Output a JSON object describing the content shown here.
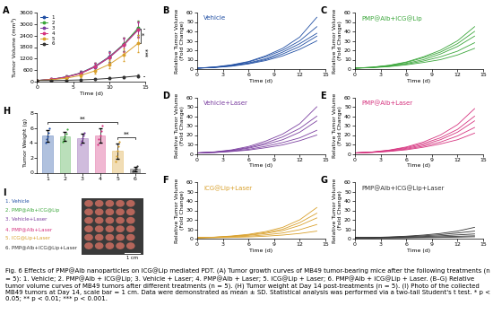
{
  "chart_data": [
    {
      "panel_label": "A",
      "type": "line",
      "x_label": "Time (d)",
      "y_label": "Tumor Volume (mm³)",
      "x": [
        0,
        2,
        4,
        6,
        8,
        10,
        12,
        14
      ],
      "xlim": [
        0,
        15
      ],
      "xticks": [
        0,
        5,
        10,
        15
      ],
      "ylim": [
        0,
        3600
      ],
      "yticks": [
        0,
        600,
        1200,
        1800,
        2400,
        3000,
        3600
      ],
      "legend": "upper left",
      "marker": "o",
      "series": [
        {
          "name": "1",
          "color": "#1f4ea3",
          "values": [
            60,
            120,
            250,
            450,
            800,
            1300,
            1950,
            2750
          ],
          "error": [
            20,
            40,
            70,
            120,
            200,
            280,
            350,
            400
          ]
        },
        {
          "name": "2",
          "color": "#3aa63a",
          "values": [
            60,
            115,
            240,
            440,
            780,
            1280,
            1950,
            2800
          ],
          "error": [
            20,
            40,
            70,
            110,
            190,
            270,
            340,
            380
          ]
        },
        {
          "name": "3",
          "color": "#7b3fa0",
          "values": [
            60,
            110,
            230,
            420,
            760,
            1250,
            1900,
            2700
          ],
          "error": [
            20,
            35,
            65,
            110,
            180,
            260,
            330,
            370
          ]
        },
        {
          "name": "4",
          "color": "#d6337f",
          "values": [
            60,
            120,
            240,
            430,
            780,
            1270,
            1920,
            2700
          ],
          "error": [
            20,
            40,
            70,
            120,
            200,
            280,
            360,
            420
          ]
        },
        {
          "name": "5",
          "color": "#d9a02b",
          "values": [
            60,
            100,
            180,
            320,
            560,
            900,
            1400,
            2000
          ],
          "error": [
            20,
            30,
            50,
            90,
            150,
            220,
            320,
            450
          ]
        },
        {
          "name": "6",
          "color": "#333333",
          "values": [
            60,
            60,
            70,
            90,
            120,
            170,
            230,
            300
          ],
          "error": [
            20,
            20,
            25,
            30,
            40,
            50,
            60,
            80
          ]
        }
      ],
      "comparisons": [
        {
          "between": [
            "1",
            "5"
          ],
          "label": "*"
        },
        {
          "between": [
            "1",
            "6"
          ],
          "label": "***"
        }
      ]
    },
    {
      "panel_label": "B",
      "type": "line",
      "title": "Vehicle",
      "x_label": "Time (d)",
      "y_label": "Relative Tumor Volume\n(Fold Change)",
      "x": [
        0,
        2,
        4,
        6,
        8,
        10,
        12,
        14
      ],
      "xlim": [
        0,
        15
      ],
      "xticks": [
        0,
        3,
        6,
        9,
        12,
        15
      ],
      "ylim": [
        0,
        60
      ],
      "yticks": [
        0,
        10,
        20,
        30,
        40,
        50,
        60
      ],
      "color": "#1f4ea3",
      "series": [
        {
          "values": [
            1,
            2.2,
            4.5,
            8,
            14,
            22,
            34,
            55
          ]
        },
        {
          "values": [
            1,
            2,
            4,
            7.5,
            13,
            20,
            30,
            45
          ]
        },
        {
          "values": [
            1,
            1.8,
            3.6,
            6.5,
            11,
            18,
            27,
            38
          ]
        },
        {
          "values": [
            1,
            1.9,
            3.5,
            6,
            10,
            16,
            24,
            35
          ]
        },
        {
          "values": [
            1,
            1.6,
            3,
            5.5,
            9,
            14,
            21,
            30
          ]
        }
      ]
    },
    {
      "panel_label": "C",
      "type": "line",
      "title": "PMP@Alb+ICG@Lip",
      "x_label": "Time (d)",
      "y_label": "Relative Tumor Volume\n(Fold Change)",
      "x": [
        0,
        2,
        4,
        6,
        8,
        10,
        12,
        14
      ],
      "xlim": [
        0,
        15
      ],
      "xticks": [
        0,
        3,
        6,
        9,
        12,
        15
      ],
      "ylim": [
        0,
        60
      ],
      "yticks": [
        0,
        10,
        20,
        30,
        40,
        50,
        60
      ],
      "color": "#3aa63a",
      "series": [
        {
          "values": [
            1,
            2,
            4,
            7.5,
            13,
            20,
            30,
            45
          ]
        },
        {
          "values": [
            1,
            1.9,
            3.8,
            7,
            12,
            18,
            27,
            40
          ]
        },
        {
          "values": [
            1,
            1.8,
            3.4,
            6,
            10,
            16,
            24,
            35
          ]
        },
        {
          "values": [
            1,
            1.6,
            3,
            5.2,
            8.5,
            13,
            19,
            28
          ]
        },
        {
          "values": [
            1,
            1.5,
            2.6,
            4.5,
            7,
            10,
            15,
            22
          ]
        }
      ]
    },
    {
      "panel_label": "D",
      "type": "line",
      "title": "Vehicle+Laser",
      "x_label": "Time (d)",
      "y_label": "Relative Tumor Volume\n(Fold Change)",
      "x": [
        0,
        2,
        4,
        6,
        8,
        10,
        12,
        14
      ],
      "xlim": [
        0,
        15
      ],
      "xticks": [
        0,
        3,
        6,
        9,
        12,
        15
      ],
      "ylim": [
        0,
        60
      ],
      "yticks": [
        0,
        10,
        20,
        30,
        40,
        50,
        60
      ],
      "color": "#7b3fa0",
      "series": [
        {
          "values": [
            1,
            2.1,
            4.2,
            7.8,
            13.5,
            21,
            32,
            50
          ]
        },
        {
          "values": [
            1,
            1.9,
            3.7,
            6.8,
            11.5,
            18,
            27,
            40
          ]
        },
        {
          "values": [
            1,
            1.7,
            3.3,
            6,
            10,
            15,
            23,
            35
          ]
        },
        {
          "values": [
            1,
            1.5,
            2.8,
            4.8,
            8,
            12,
            17,
            25
          ]
        },
        {
          "values": [
            1,
            1.4,
            2.5,
            4,
            6.5,
            9.5,
            14,
            20
          ]
        }
      ]
    },
    {
      "panel_label": "E",
      "type": "line",
      "title": "PMP@Alb+Laser",
      "x_label": "Time (d)",
      "y_label": "Relative Tumor Volume\n(Fold Change)",
      "x": [
        0,
        2,
        4,
        6,
        8,
        10,
        12,
        14
      ],
      "xlim": [
        0,
        15
      ],
      "xticks": [
        0,
        3,
        6,
        9,
        12,
        15
      ],
      "ylim": [
        0,
        60
      ],
      "yticks": [
        0,
        10,
        20,
        30,
        40,
        50,
        60
      ],
      "color": "#d6337f",
      "series": [
        {
          "values": [
            1,
            2,
            4,
            7.3,
            12.5,
            20,
            31,
            48
          ]
        },
        {
          "values": [
            1,
            1.9,
            3.7,
            6.6,
            11,
            17,
            26,
            40
          ]
        },
        {
          "values": [
            1,
            1.7,
            3.2,
            5.8,
            9.5,
            15,
            23,
            35
          ]
        },
        {
          "values": [
            1,
            1.6,
            2.9,
            5,
            8.2,
            12.5,
            19,
            28
          ]
        },
        {
          "values": [
            1,
            1.5,
            2.6,
            4.3,
            7,
            10.5,
            15,
            22
          ]
        }
      ]
    },
    {
      "panel_label": "F",
      "type": "line",
      "title": "ICG@Lip+Laser",
      "x_label": "Time (d)",
      "y_label": "Relative Tumor Volume\n(Fold Change)",
      "x": [
        0,
        2,
        4,
        6,
        8,
        10,
        12,
        14
      ],
      "xlim": [
        0,
        15
      ],
      "xticks": [
        0,
        3,
        6,
        9,
        12,
        15
      ],
      "ylim": [
        0,
        60
      ],
      "yticks": [
        0,
        10,
        20,
        30,
        40,
        50,
        60
      ],
      "color": "#d9a02b",
      "series": [
        {
          "values": [
            1,
            1.6,
            2.8,
            4.6,
            7.5,
            12,
            20,
            33
          ]
        },
        {
          "values": [
            1,
            1.5,
            2.5,
            4,
            6.5,
            10,
            17,
            27
          ]
        },
        {
          "values": [
            1,
            1.4,
            2.2,
            3.5,
            5.5,
            8.5,
            14,
            22
          ]
        },
        {
          "values": [
            1,
            1.2,
            1.8,
            2.6,
            4,
            6,
            9.5,
            15
          ]
        },
        {
          "values": [
            1,
            1,
            1.3,
            1.8,
            2.6,
            3.8,
            5.5,
            8
          ]
        }
      ]
    },
    {
      "panel_label": "G",
      "type": "line",
      "title": "PMP@Alb+ICG@Lip+Laser",
      "x_label": "Time (d)",
      "y_label": "Relative Tumor Volume\n(Fold Change)",
      "x": [
        0,
        2,
        4,
        6,
        8,
        10,
        12,
        14
      ],
      "xlim": [
        0,
        15
      ],
      "xticks": [
        0,
        3,
        6,
        9,
        12,
        15
      ],
      "ylim": [
        0,
        60
      ],
      "yticks": [
        0,
        10,
        20,
        30,
        40,
        50,
        60
      ],
      "color": "#333333",
      "series": [
        {
          "values": [
            1,
            1.2,
            1.8,
            2.6,
            3.8,
            5.5,
            8,
            12
          ]
        },
        {
          "values": [
            1,
            1.1,
            1.5,
            2.1,
            3,
            4.2,
            6,
            8
          ]
        },
        {
          "values": [
            1,
            1,
            1.2,
            1.6,
            2.2,
            3,
            4,
            5
          ]
        },
        {
          "values": [
            1,
            0.9,
            1,
            1.2,
            1.5,
            2,
            2.5,
            3
          ]
        },
        {
          "values": [
            1,
            0.8,
            0.8,
            0.9,
            1.1,
            1.3,
            1.6,
            2
          ]
        }
      ]
    },
    {
      "panel_label": "H",
      "type": "bar",
      "y_label": "Tumor Weight (g)",
      "categories": [
        "1",
        "2",
        "3",
        "4",
        "5",
        "6"
      ],
      "values": [
        4.94,
        4.92,
        4.62,
        5.04,
        2.9,
        0.5
      ],
      "error": [
        0.75,
        0.6,
        0.6,
        0.95,
        1.05,
        0.27
      ],
      "points": [
        [
          4,
          4.5,
          4.9,
          5.3,
          6
        ],
        [
          4.2,
          4.5,
          4.9,
          5.2,
          5.8
        ],
        [
          3.8,
          4.3,
          4.6,
          5,
          5.4
        ],
        [
          3.8,
          4.5,
          5,
          5.6,
          6.3
        ],
        [
          1.5,
          2.2,
          3,
          3.6,
          4.2
        ],
        [
          0.2,
          0.3,
          0.5,
          0.6,
          0.9
        ]
      ],
      "colors": [
        "#1f4ea3",
        "#3aa63a",
        "#7b3fa0",
        "#d6337f",
        "#d9a02b",
        "#333333"
      ],
      "ylim": [
        0,
        8
      ],
      "yticks": [
        0,
        2,
        4,
        6,
        8
      ],
      "comparisons": [
        {
          "between": [
            "1",
            "5"
          ],
          "label": "**"
        },
        {
          "between": [
            "5",
            "6"
          ],
          "label": "**"
        }
      ]
    }
  ],
  "photo_panel": {
    "panel_label": "I",
    "items": [
      "1. Vehicle",
      "2. PMP@Alb+ICG@Lip",
      "3. Vehicle+Laser",
      "4. PMP@Alb+Laser",
      "5. ICG@Lip+Laser",
      "6. PMP@Alb+ICG@Lip+Laser"
    ],
    "colors": [
      "#1f4ea3",
      "#3aa63a",
      "#7b3fa0",
      "#d6337f",
      "#d9a02b",
      "#333333"
    ],
    "scale_bar": "1 cm"
  },
  "caption": "Fig. 6 Effects of PMP@Alb nanoparticles on ICG@Lip mediated PDT. (A) Tumor growth curves of MB49 tumor-bearing mice after the following treatments (n = 5): 1. Vehicle; 2. PMP@Alb + ICG@Lip; 3. Vehicle + Laser; 4. PMP@Alb + Laser; 5. ICG@Lip + Laser; 6. PMP@Alb + ICG@Lip + Laser. (B–G) Relative tumor volume curves of MB49 tumors after different treatments (n = 5). (H) Tumor weight at Day 14 post-treatments (n = 5). (I) Photo of the collected MB49 tumors at Day 14, scale bar = 1 cm. Data were demonstrated as mean ± SD. Statistical analysis was performed via a two-tail Student's t test. * p < 0.05; ** p < 0.01; *** p < 0.001."
}
